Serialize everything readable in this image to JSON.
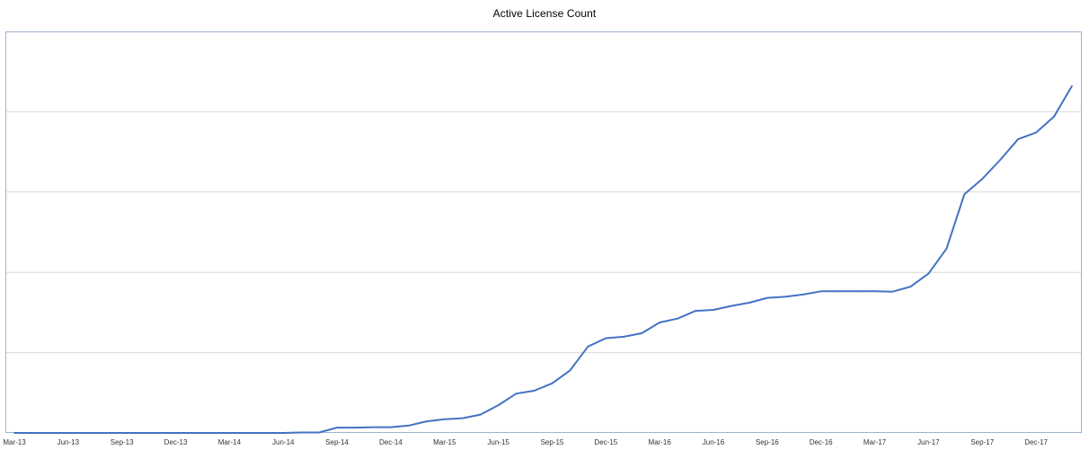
{
  "chart_data": {
    "type": "line",
    "title": "Active License Count",
    "xlabel": "",
    "ylabel": "",
    "x_start": "Mar-13",
    "x_tick_labels": [
      "Mar-13",
      "Jun-13",
      "Sep-13",
      "Dec-13",
      "Mar-14",
      "Jun-14",
      "Sep-14",
      "Dec-14",
      "Mar-15",
      "Jun-15",
      "Sep-15",
      "Dec-15",
      "Mar-16",
      "Jun-16",
      "Sep-16",
      "Dec-16",
      "Mar-17",
      "Jun-17",
      "Sep-17",
      "Dec-17"
    ],
    "x": [
      "Mar-13",
      "Apr-13",
      "May-13",
      "Jun-13",
      "Jul-13",
      "Aug-13",
      "Sep-13",
      "Oct-13",
      "Nov-13",
      "Dec-13",
      "Jan-14",
      "Feb-14",
      "Mar-14",
      "Apr-14",
      "May-14",
      "Jun-14",
      "Jul-14",
      "Aug-14",
      "Sep-14",
      "Oct-14",
      "Nov-14",
      "Dec-14",
      "Jan-15",
      "Feb-15",
      "Mar-15",
      "Apr-15",
      "May-15",
      "Jun-15",
      "Jul-15",
      "Aug-15",
      "Sep-15",
      "Oct-15",
      "Nov-15",
      "Dec-15",
      "Jan-16",
      "Feb-16",
      "Mar-16",
      "Apr-16",
      "May-16",
      "Jun-16",
      "Jul-16",
      "Aug-16",
      "Sep-16",
      "Oct-16",
      "Nov-16",
      "Dec-16",
      "Jan-17",
      "Feb-17",
      "Mar-17",
      "Apr-17",
      "May-17",
      "Jun-17",
      "Jul-17",
      "Aug-17",
      "Sep-17",
      "Oct-17",
      "Nov-17",
      "Dec-17",
      "Jan-18",
      "Feb-18"
    ],
    "series": [
      {
        "name": "",
        "color": "#4472c4",
        "values": [
          0,
          0,
          0,
          0,
          0,
          0,
          0,
          0,
          0,
          0,
          0,
          0,
          0,
          0,
          0,
          0,
          0.03,
          0.03,
          0.33,
          0.33,
          0.36,
          0.36,
          0.46,
          0.72,
          0.85,
          0.92,
          1.14,
          1.73,
          2.45,
          2.63,
          3.09,
          3.89,
          5.38,
          5.9,
          5.99,
          6.21,
          6.88,
          7.12,
          7.6,
          7.66,
          7.91,
          8.11,
          8.41,
          8.48,
          8.62,
          8.82,
          8.82,
          8.82,
          8.82,
          8.8,
          9.11,
          9.92,
          11.47,
          14.86,
          15.82,
          17.0,
          18.3,
          18.7,
          19.7,
          21.6
        ]
      }
    ],
    "ylim": [
      0,
      25
    ],
    "y_gridlines": [
      5,
      10,
      15,
      20
    ],
    "y_tick_labels_visible": false,
    "grid": true,
    "legend": "none"
  }
}
